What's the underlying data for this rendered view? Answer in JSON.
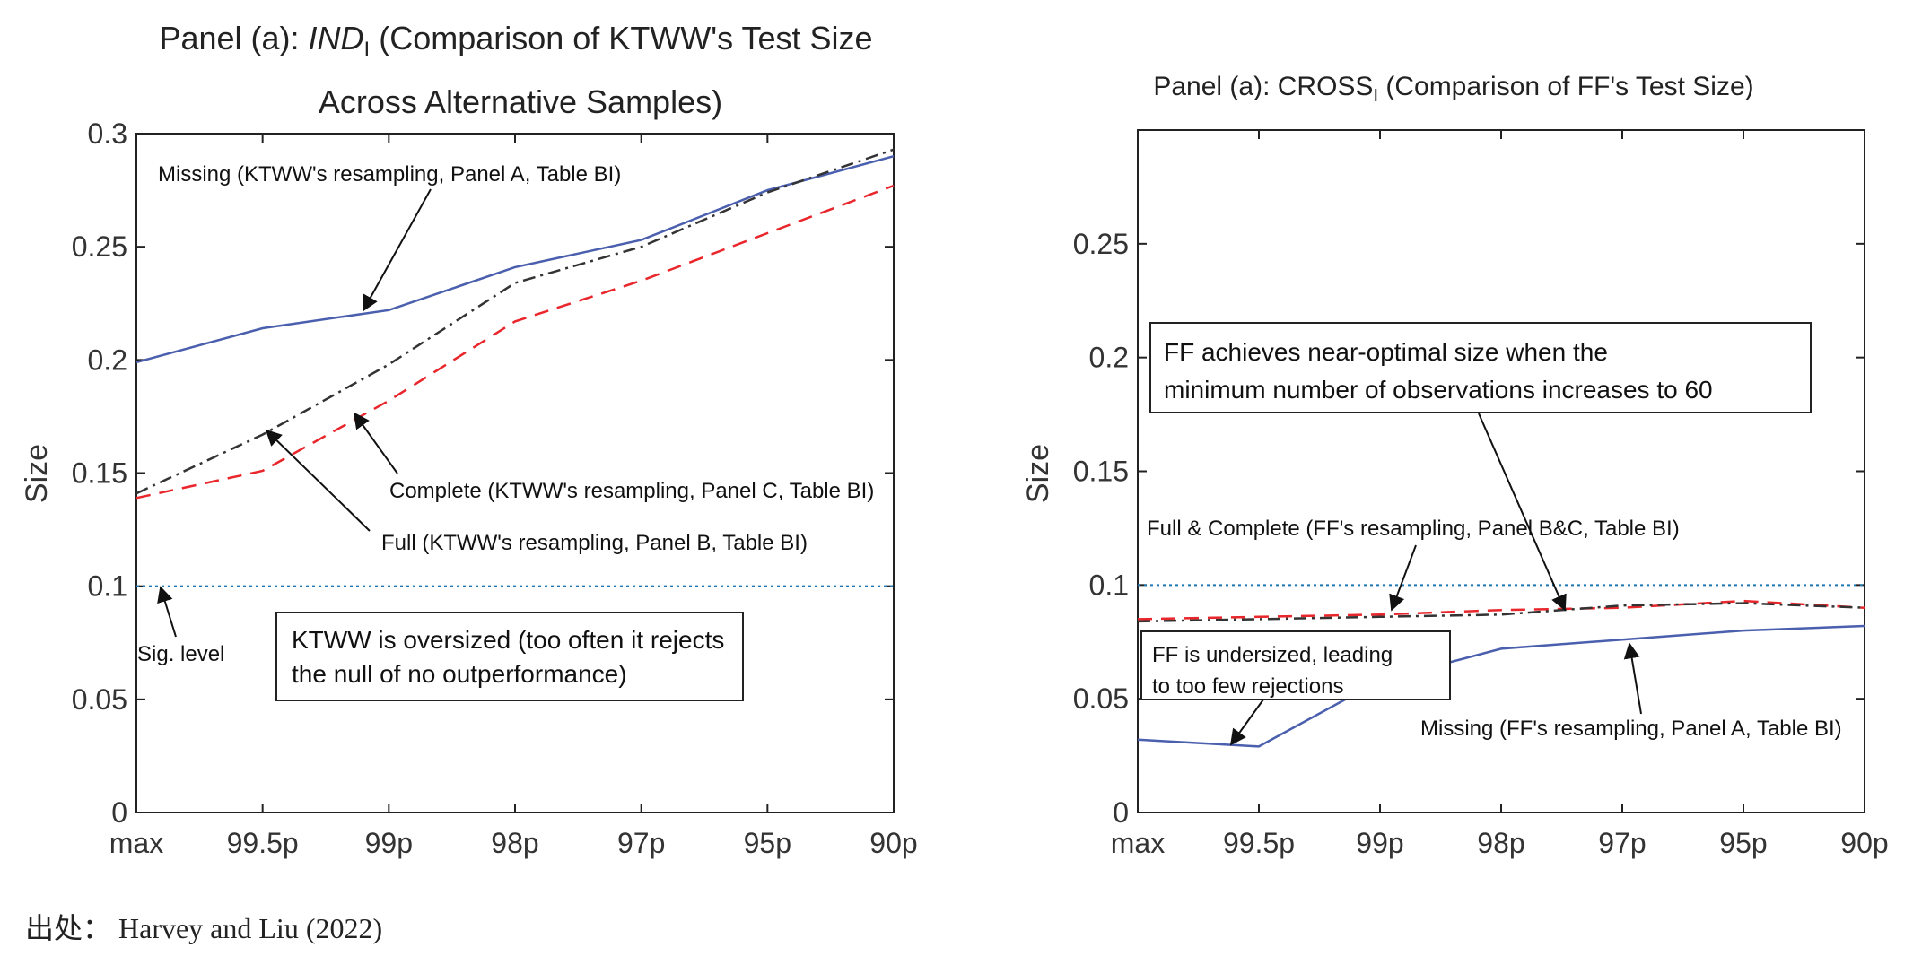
{
  "source": "出处： Harvey and Liu (2022)",
  "chart_data": [
    {
      "type": "line",
      "title_lines": [
        "Panel (a): INDI (Comparison of KTWW's Test Size",
        "Across Alternative Samples)"
      ],
      "title_prefix": "Panel (a): ",
      "title_italic": "IND",
      "title_sub": "I",
      "title_rest": " (Comparison of KTWW's Test Size",
      "title_line2": "Across Alternative Samples)",
      "ylabel": "Size",
      "categories": [
        "max",
        "99.5p",
        "99p",
        "98p",
        "97p",
        "95p",
        "90p"
      ],
      "ylim": [
        0,
        0.3
      ],
      "yticks": [
        "0",
        "0.05",
        "0.1",
        "0.15",
        "0.2",
        "0.25",
        "0.3"
      ],
      "series": [
        {
          "key": "missing",
          "values": [
            0.199,
            0.214,
            0.222,
            0.241,
            0.253,
            0.275,
            0.29
          ],
          "color": "#4a5fae",
          "dash": ""
        },
        {
          "key": "full",
          "values": [
            0.141,
            0.167,
            0.198,
            0.234,
            0.25,
            0.274,
            0.293
          ],
          "color": "#333333",
          "dash": "14,6,3,6"
        },
        {
          "key": "complete",
          "values": [
            0.139,
            0.151,
            0.182,
            0.217,
            0.235,
            0.256,
            0.277
          ],
          "color": "#e8262b",
          "dash": "16,10"
        }
      ],
      "sig_level": 0.1,
      "sig_color": "#1f77b4",
      "annotations": {
        "missing": "Missing (KTWW's resampling, Panel A, Table BI)",
        "complete": "Complete (KTWW's resampling, Panel C, Table BI)",
        "full": "Full (KTWW's resampling, Panel B, Table BI)",
        "sig": "Sig. level"
      },
      "box_lines": [
        "KTWW is oversized (too often it rejects",
        "the null of no outperformance)"
      ]
    },
    {
      "type": "line",
      "title": "Panel (a): CROSSI (Comparison of FF's Test Size)",
      "title_prefix": "Panel (a): CROSS",
      "title_sub": "I",
      "title_rest": " (Comparison of FF's Test Size)",
      "ylabel": "Size",
      "categories": [
        "max",
        "99.5p",
        "99p",
        "98p",
        "97p",
        "95p",
        "90p"
      ],
      "ylim": [
        0,
        0.3
      ],
      "yticks": [
        "0",
        "0.05",
        "0.1",
        "0.15",
        "0.2",
        "0.25"
      ],
      "series": [
        {
          "key": "missing",
          "values": [
            0.032,
            0.029,
            0.058,
            0.072,
            0.076,
            0.08,
            0.082
          ],
          "color": "#4a5fae",
          "dash": ""
        },
        {
          "key": "complete",
          "values": [
            0.085,
            0.086,
            0.087,
            0.089,
            0.09,
            0.093,
            0.09
          ],
          "color": "#e8262b",
          "dash": "16,10"
        },
        {
          "key": "full",
          "values": [
            0.084,
            0.085,
            0.086,
            0.087,
            0.091,
            0.092,
            0.09
          ],
          "color": "#333333",
          "dash": "14,6,3,6"
        }
      ],
      "sig_level": 0.1,
      "sig_color": "#1f77b4",
      "annotations": {
        "full_complete": "Full & Complete (FF's resampling, Panel B&C, Table BI)",
        "missing": "Missing (FF's resampling, Panel A, Table BI)"
      },
      "box1_lines": [
        "FF achieves near-optimal size when the",
        "minimum number of observations increases to 60"
      ],
      "box2_lines": [
        "FF is undersized, leading",
        "to too few rejections"
      ]
    }
  ]
}
